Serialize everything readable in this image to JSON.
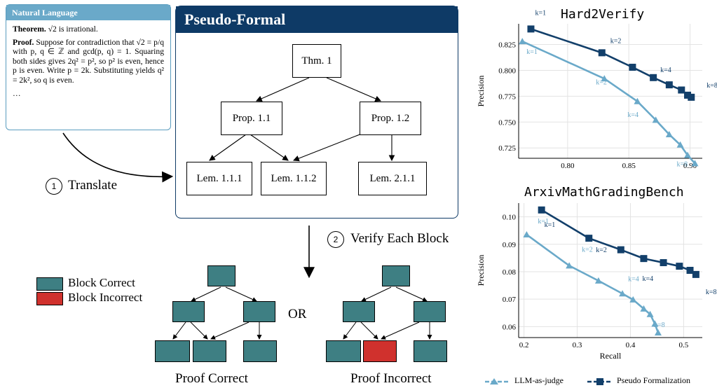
{
  "natural_language": {
    "header": "Natural Language",
    "theorem_label": "Theorem.",
    "theorem_text": "√2 is irrational.",
    "proof_label": "Proof.",
    "proof_text": "Suppose for contradiction that √2 = p/q with p, q ∈ ℤ and gcd(p, q) = 1. Squaring both sides gives 2q² = p², so p² is even, hence p is even. Write p = 2k. Substituting yields q² = 2k², so q is even.",
    "ellipsis": "…"
  },
  "pseudo_formal": {
    "header": "Pseudo-Formal",
    "nodes": {
      "thm": "Thm. 1",
      "prop11": "Prop. 1.1",
      "prop12": "Prop. 1.2",
      "lem111": "Lem. 1.1.1",
      "lem112": "Lem. 1.1.2",
      "lem211": "Lem. 2.1.1"
    }
  },
  "steps": {
    "translate_num": "1",
    "translate_label": "Translate",
    "verify_num": "2",
    "verify_label": "Verify Each Block"
  },
  "legend": {
    "correct": "Block Correct",
    "incorrect": "Block Incorrect",
    "correct_color": "#3e7f83",
    "incorrect_color": "#d0312d"
  },
  "outcomes": {
    "or_label": "OR",
    "correct_label": "Proof Correct",
    "incorrect_label": "Proof Incorrect"
  },
  "colors": {
    "pf_blue": "#0e3a66",
    "nl_blue": "#6aa9c9",
    "llm_series": "#6aa9c9",
    "pf_series": "#123f6a"
  },
  "chart_data": [
    {
      "type": "line",
      "title": "Hard2Verify",
      "xlabel": "",
      "ylabel": "Precision",
      "xlim": [
        0.76,
        0.91
      ],
      "ylim": [
        0.715,
        0.845
      ],
      "xticks": [
        "0.80",
        "0.85",
        "0.90"
      ],
      "yticks": [
        "0.725",
        "0.750",
        "0.775",
        "0.800",
        "0.825"
      ],
      "grid": true,
      "series": [
        {
          "name": "LLM-as-judge",
          "x": [
            0.763,
            0.83,
            0.857,
            0.872,
            0.883,
            0.892,
            0.898,
            0.904
          ],
          "y": [
            0.828,
            0.792,
            0.77,
            0.752,
            0.738,
            0.728,
            0.718,
            0.71
          ]
        },
        {
          "name": "Pseudo Formalization",
          "x": [
            0.77,
            0.828,
            0.853,
            0.87,
            0.883,
            0.893,
            0.898,
            0.901
          ],
          "y": [
            0.84,
            0.817,
            0.803,
            0.793,
            0.786,
            0.781,
            0.776,
            0.774
          ]
        }
      ],
      "annotations": {
        "llm": [
          "k=1",
          "k=2",
          "k=4",
          "k=8"
        ],
        "pf": [
          "k=1",
          "k=2",
          "k=4",
          "k=8"
        ]
      }
    },
    {
      "type": "line",
      "title": "ArxivMathGradingBench",
      "xlabel": "Recall",
      "ylabel": "Precision",
      "xlim": [
        0.19,
        0.535
      ],
      "ylim": [
        0.056,
        0.105
      ],
      "xticks": [
        "0.2",
        "0.3",
        "0.4",
        "0.5"
      ],
      "yticks": [
        "0.06",
        "0.07",
        "0.08",
        "0.09",
        "0.10"
      ],
      "grid": true,
      "series": [
        {
          "name": "LLM-as-judge",
          "x": [
            0.205,
            0.285,
            0.34,
            0.385,
            0.405,
            0.425,
            0.437,
            0.446,
            0.452
          ],
          "y": [
            0.0935,
            0.0822,
            0.0767,
            0.072,
            0.0698,
            0.0665,
            0.0645,
            0.061,
            0.0578
          ]
        },
        {
          "name": "Pseudo Formalization",
          "x": [
            0.233,
            0.322,
            0.382,
            0.425,
            0.462,
            0.492,
            0.512,
            0.523
          ],
          "y": [
            0.1025,
            0.0922,
            0.088,
            0.0848,
            0.0833,
            0.082,
            0.0805,
            0.079
          ]
        }
      ],
      "annotations": {
        "llm": [
          "k=1",
          "k=2",
          "k=4",
          "k=8"
        ],
        "pf": [
          "k=1",
          "k=2",
          "k=4",
          "k=8"
        ]
      }
    }
  ],
  "chart_legend": {
    "llm": "LLM-as-judge",
    "pf": "Pseudo Formalization"
  }
}
